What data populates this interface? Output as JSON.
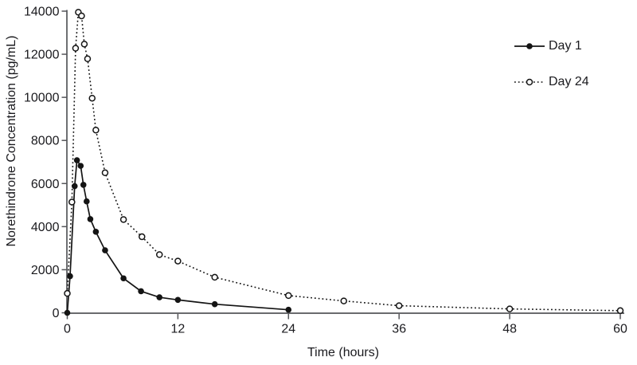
{
  "figure": {
    "background": "#ffffff",
    "text_color": "#1a1a1e",
    "axis_color": "#55565a",
    "series_color": "#141414"
  },
  "chart_data": {
    "type": "line",
    "title": "",
    "xlabel": "Time (hours)",
    "ylabel": "Norethindrone Concentration (pg/mL)",
    "xlim": [
      0,
      60
    ],
    "ylim": [
      0,
      14000
    ],
    "x_ticks": [
      0,
      12,
      24,
      36,
      48,
      60
    ],
    "x_tick_labels": [
      "0",
      "12",
      "24",
      "36",
      "48",
      "60"
    ],
    "y_ticks": [
      0,
      2000,
      4000,
      6000,
      8000,
      10000,
      12000,
      14000
    ],
    "y_tick_labels": [
      "0",
      "2000",
      "4000",
      "6000",
      "8000",
      "10000",
      "12000",
      "14000"
    ],
    "grid": false,
    "legend_position": "upper-right",
    "series": [
      {
        "name": "Day 1",
        "marker": "filled-circle",
        "line": "solid",
        "x": [
          0,
          0.3,
          0.8,
          1.05,
          1.45,
          1.75,
          2.1,
          2.5,
          3.1,
          4.1,
          6.1,
          8,
          10,
          12,
          16,
          24
        ],
        "y": [
          0,
          1700,
          5880,
          7080,
          6820,
          5940,
          5170,
          4350,
          3760,
          2900,
          1600,
          1000,
          720,
          600,
          400,
          140
        ]
      },
      {
        "name": "Day 24",
        "marker": "open-circle",
        "line": "dotted",
        "x": [
          0,
          0.5,
          0.9,
          1.2,
          1.55,
          1.85,
          2.2,
          2.7,
          3.1,
          4.1,
          6.1,
          8.1,
          10,
          12,
          16,
          24,
          30,
          36,
          48,
          60
        ],
        "y": [
          900,
          5140,
          12280,
          13950,
          13780,
          12470,
          11790,
          9960,
          8480,
          6500,
          4330,
          3530,
          2700,
          2400,
          1650,
          800,
          550,
          330,
          180,
          100
        ]
      }
    ]
  }
}
